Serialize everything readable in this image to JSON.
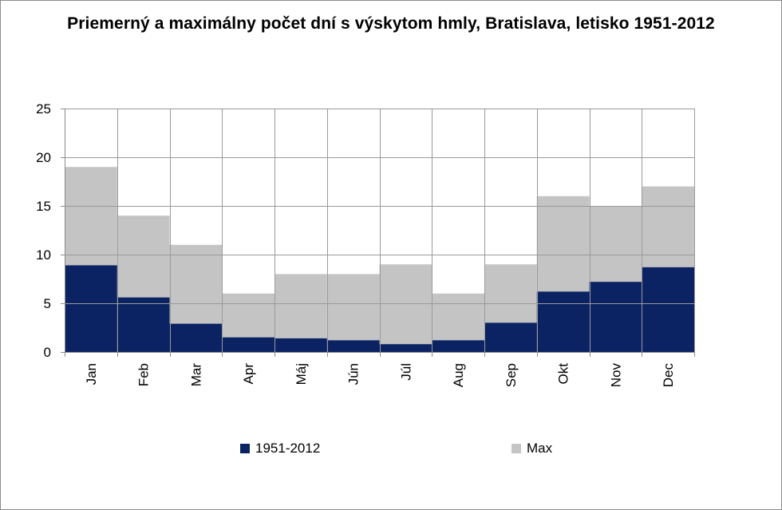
{
  "title": "Priemerný a maximálny počet dní s výskytom hmly, Bratislava, letisko 1951-2012",
  "colors": {
    "avg": "#0b2363",
    "max": "#c4c4c4",
    "grid": "#9a9a9a",
    "axis": "#8c8c8c"
  },
  "chart_data": {
    "type": "area",
    "title": "Priemerný a maximálny počet dní s výskytom hmly, Bratislava, letisko 1951-2012",
    "xlabel": "",
    "ylabel": "",
    "categories": [
      "Jan",
      "Feb",
      "Mar",
      "Apr",
      "Máj",
      "Jún",
      "Júl",
      "Aug",
      "Sep",
      "Okt",
      "Nov",
      "Dec"
    ],
    "ylim": [
      0,
      25
    ],
    "yticks": [
      0,
      5,
      10,
      15,
      20,
      25
    ],
    "grid": true,
    "legend_position": "bottom",
    "series": [
      {
        "name": "1951-2012",
        "values": [
          8.9,
          5.6,
          2.9,
          1.5,
          1.4,
          1.2,
          0.8,
          1.2,
          3.0,
          6.2,
          7.2,
          8.7
        ]
      },
      {
        "name": "Max",
        "values": [
          19,
          14,
          11,
          6,
          8,
          8,
          9,
          6,
          9,
          16,
          15,
          17
        ]
      }
    ]
  }
}
